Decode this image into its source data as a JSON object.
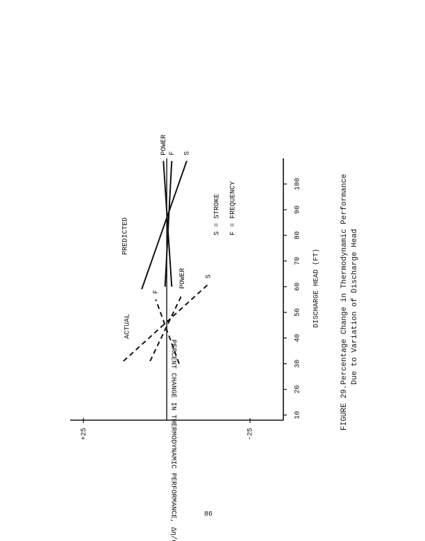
{
  "chart_data": {
    "type": "line",
    "xlabel": "DISCHARGE HEAD (FT)",
    "ylabel": "PERCENT CHANGE IN THERMODYNAMIC PERFORMANCE, Δη/η (%)",
    "xlim": [
      8,
      110
    ],
    "xticks": [
      10,
      20,
      30,
      40,
      50,
      60,
      70,
      80,
      90,
      100
    ],
    "ylim": [
      -35,
      29
    ],
    "yticks": [
      {
        "value": 25,
        "label": "+25"
      },
      {
        "value": -25,
        "label": "-25"
      }
    ],
    "reference_line": 0,
    "group_labels": [
      "PREDICTED",
      "ACTUAL"
    ],
    "notes": [
      "S = STROKE",
      "F = FREQUENCY"
    ],
    "series": [
      {
        "name": "POWER",
        "color": "#111111",
        "dashed": false,
        "x": [
          60,
          109
        ],
        "values": [
          -1.5,
          1
        ]
      },
      {
        "name": "F",
        "color": "#111111",
        "dashed": false,
        "x": [
          60,
          109
        ],
        "values": [
          0.5,
          -1.5
        ]
      },
      {
        "name": "S",
        "color": "#111111",
        "dashed": false,
        "x": [
          59,
          109
        ],
        "values": [
          7.5,
          -6
        ]
      },
      {
        "name": "F",
        "color": "#111111",
        "dashed": true,
        "x": [
          30,
          55
        ],
        "values": [
          -3.7,
          3.3
        ]
      },
      {
        "name": "POWER",
        "color": "#111111",
        "dashed": true,
        "x": [
          31,
          57
        ],
        "values": [
          5,
          -4.6
        ]
      },
      {
        "name": "S",
        "color": "#111111",
        "dashed": true,
        "x": [
          31,
          61
        ],
        "values": [
          13,
          -12.5
        ]
      }
    ]
  },
  "caption": {
    "label": "FIGURE 29.",
    "lines": [
      "Percentage Change in Thermodynamic Performance",
      "Due to Variation of Discharge Head"
    ]
  },
  "page_number": "86"
}
